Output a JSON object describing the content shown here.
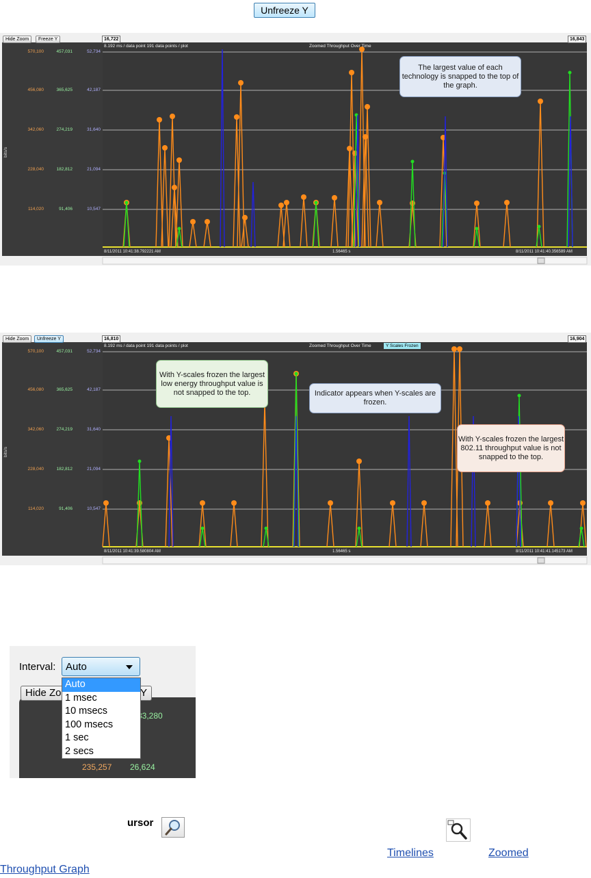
{
  "top_button": {
    "label": "Unfreeze Y"
  },
  "graph1": {
    "controls": {
      "hide_zoom": "Hide Zoom",
      "freeze": "Freeze Y"
    },
    "range_start": "16,722",
    "range_end": "16,843",
    "info": "8.192 ms / data point     191 data points / plot",
    "title": "Zoomed Throughput Over Time",
    "frozen_indicator": "",
    "y_unit": "bits/s",
    "y_axis": {
      "orange_ticks": [
        "570,100",
        "456,080",
        "342,060",
        "228,040",
        "114,020"
      ],
      "green_ticks": [
        "457,031",
        "365,625",
        "274,219",
        "182,812",
        "91,406"
      ],
      "blue_ticks": [
        "52,734",
        "42,187",
        "31,640",
        "21,094",
        "10,547"
      ]
    },
    "x_start": "8/11/2011 10:41:38.792221 AM",
    "x_mid": "1.56465 s",
    "x_end": "8/11/2011 10:41:40.356589 AM",
    "callouts": [
      {
        "text": "The largest value of each technology is snapped to the top of the graph.",
        "style": "blue"
      }
    ]
  },
  "graph2": {
    "controls": {
      "hide_zoom": "Hide Zoom",
      "freeze": "Unfreeze Y"
    },
    "range_start": "16,810",
    "range_end": "16,904",
    "info": "8.192 ms / data point     191 data points / plot",
    "title": "Zoomed Throughput Over Time",
    "frozen_indicator": "Y Scales Frozen",
    "y_unit": "bits/s",
    "y_axis": {
      "orange_ticks": [
        "570,100",
        "456,080",
        "342,060",
        "228,040",
        "114,020"
      ],
      "green_ticks": [
        "457,031",
        "365,625",
        "274,219",
        "182,812",
        "91,406"
      ],
      "blue_ticks": [
        "52,734",
        "42,187",
        "31,640",
        "21,094",
        "10,547"
      ]
    },
    "x_start": "8/11/2011 10:41:39.580804 AM",
    "x_mid": "1.56465 s",
    "x_end": "8/11/2011 10:41:41.145173 AM",
    "callouts": [
      {
        "text": "With Y-scales frozen the largest low energy throughput value is not snapped to the top.",
        "style": "green"
      },
      {
        "text": "Indicator appears when Y-scales are frozen.",
        "style": "blue"
      },
      {
        "text": "With Y-scales frozen the largest 802.11 throughput value is not snapped to the top.",
        "style": "orange"
      }
    ]
  },
  "interval": {
    "label": "Interval:",
    "selected": "Auto",
    "options": [
      "Auto",
      "1 msec",
      "10 msecs",
      "100 msecs",
      "1 sec",
      "2 secs"
    ],
    "hidden_button_left": "Hide Zo",
    "hidden_button_right": "Y",
    "values": {
      "green_top": "33,280",
      "orange_bottom": "235,257",
      "green_bottom": "26,624"
    }
  },
  "footer": {
    "cursor_text": "ursor",
    "links": {
      "timelines": "Timelines",
      "zoomed": "Zoomed",
      "throughput_graph": "Throughput Graph"
    }
  },
  "colors": {
    "bg_dark": "#3a3a3a",
    "orange": "#ff8c1a",
    "green": "#22dd22",
    "blue": "#2222dd",
    "grid": "#b0b0b0"
  },
  "icons": {
    "cursor_tool": "magnifier-icon",
    "zoom_tool": "zoom-icon"
  }
}
